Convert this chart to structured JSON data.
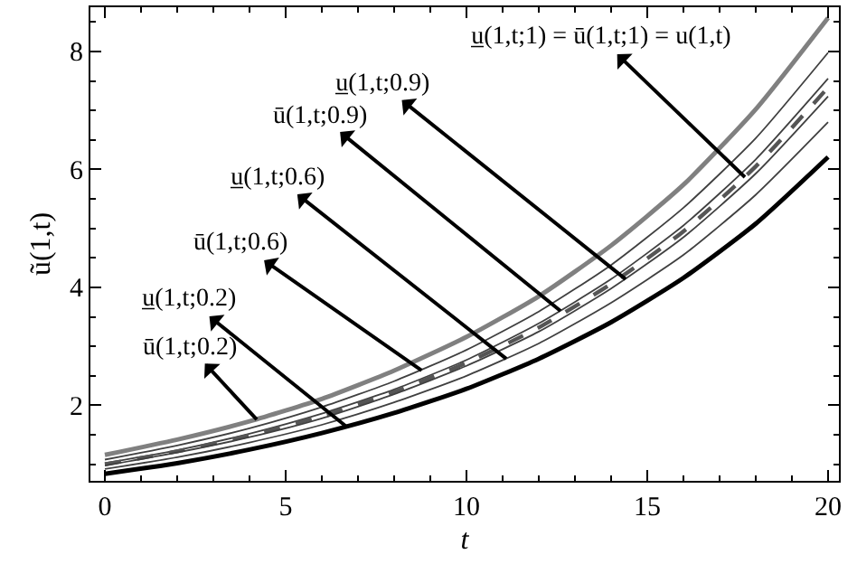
{
  "chart_data": {
    "type": "line",
    "xlabel": "t",
    "ylabel": "ũ(1,t)",
    "x": [
      0,
      2,
      4,
      6,
      8,
      10,
      12,
      14,
      16,
      18,
      20
    ],
    "series": [
      {
        "color": "#808080",
        "line_style": "solid",
        "values": [
          1.16,
          1.42,
          1.73,
          2.11,
          2.59,
          3.16,
          3.85,
          4.71,
          5.74,
          7.02,
          8.57
        ]
      },
      {
        "color": "#404040",
        "line_style": "solid",
        "values": [
          1.08,
          1.32,
          1.61,
          1.97,
          2.41,
          2.94,
          3.59,
          4.38,
          5.35,
          6.53,
          7.98
        ]
      },
      {
        "color": "#404040",
        "line_style": "solid",
        "values": [
          1.02,
          1.24,
          1.52,
          1.86,
          2.27,
          2.77,
          3.39,
          4.14,
          5.05,
          6.17,
          7.54
        ]
      },
      {
        "color": "#555555",
        "line_style": "dashed",
        "values": [
          1.0,
          1.22,
          1.49,
          1.82,
          2.23,
          2.72,
          3.32,
          4.06,
          4.95,
          6.05,
          7.39
        ]
      },
      {
        "color": "#404040",
        "line_style": "solid",
        "values": [
          0.98,
          1.2,
          1.46,
          1.78,
          2.19,
          2.67,
          3.25,
          3.98,
          4.85,
          5.93,
          7.24
        ]
      },
      {
        "color": "#404040",
        "line_style": "solid",
        "values": [
          0.92,
          1.12,
          1.37,
          1.67,
          2.05,
          2.5,
          3.05,
          3.74,
          4.55,
          5.57,
          6.8
        ]
      },
      {
        "color": "#000000",
        "line_style": "solid",
        "values": [
          0.84,
          1.02,
          1.25,
          1.53,
          1.87,
          2.28,
          2.79,
          3.41,
          4.16,
          5.08,
          6.21
        ]
      }
    ],
    "annotations": [
      {
        "text": "u̲(1,t;1) = ū(1,t;1) = u(1,t)",
        "x": 17.7,
        "y": 5.87
      },
      {
        "text": "u̲(1,t;0.9)",
        "x": 14.4,
        "y": 4.14
      },
      {
        "text": "ū(1,t;0.9)",
        "x": 12.6,
        "y": 3.6
      },
      {
        "text": "u̲(1,t;0.6)",
        "x": 11.1,
        "y": 2.79
      },
      {
        "text": "ū(1,t;0.6)",
        "x": 8.76,
        "y": 2.59
      },
      {
        "text": "u̲(1,t;0.2)",
        "x": 6.68,
        "y": 1.64
      },
      {
        "text": "ū(1,t;0.2)",
        "x": 4.2,
        "y": 1.76
      }
    ],
    "xlim": [
      -0.4,
      20.3
    ],
    "ylim": [
      0.72,
      8.75
    ],
    "xticks": [
      0,
      5,
      10,
      15,
      20
    ],
    "yticks": [
      2,
      4,
      6,
      8
    ],
    "marker": "none"
  }
}
